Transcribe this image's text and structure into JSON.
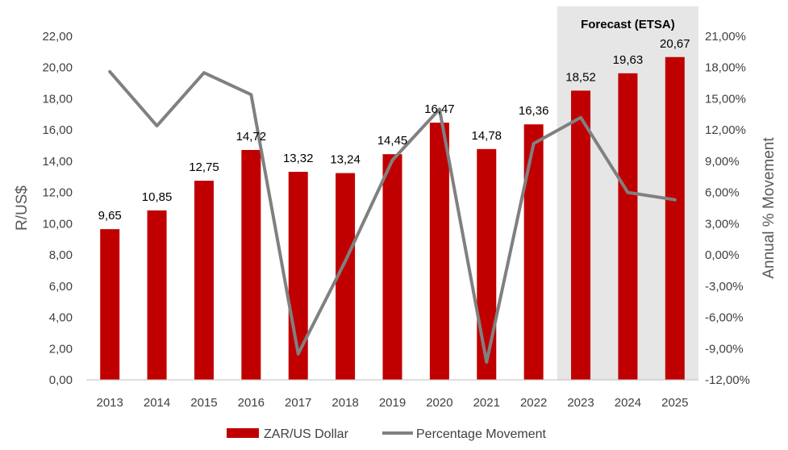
{
  "chart_data": {
    "type": "bar",
    "categories": [
      "2013",
      "2014",
      "2015",
      "2016",
      "2017",
      "2018",
      "2019",
      "2020",
      "2021",
      "2022",
      "2023",
      "2024",
      "2025"
    ],
    "series": [
      {
        "name": "ZAR/US Dollar",
        "type": "bar",
        "axis": "left",
        "color": "#C00000",
        "values": [
          9.65,
          10.85,
          12.75,
          14.72,
          13.32,
          13.24,
          14.45,
          16.47,
          14.78,
          16.36,
          18.52,
          19.63,
          20.67
        ],
        "labels": [
          "9,65",
          "10,85",
          "12,75",
          "14,72",
          "13,32",
          "13,24",
          "14,45",
          "16,47",
          "14,78",
          "16,36",
          "18,52",
          "19,63",
          "20,67"
        ]
      },
      {
        "name": "Percentage Movement",
        "type": "line",
        "axis": "right",
        "color": "#808080",
        "values": [
          17.6,
          12.4,
          17.5,
          15.4,
          -9.5,
          -0.6,
          9.1,
          14.0,
          -10.3,
          10.7,
          13.2,
          6.0,
          5.3
        ]
      }
    ],
    "ylabel": "R/US$",
    "y2label": "Annual % Movement",
    "ylim": [
      0,
      22
    ],
    "y2lim": [
      -12,
      21
    ],
    "yticks": [
      "0,00",
      "2,00",
      "4,00",
      "6,00",
      "8,00",
      "10,00",
      "12,00",
      "14,00",
      "16,00",
      "18,00",
      "20,00",
      "22,00"
    ],
    "y2ticks": [
      "-12,00%",
      "-9,00%",
      "-6,00%",
      "-3,00%",
      "0,00%",
      "3,00%",
      "6,00%",
      "9,00%",
      "12,00%",
      "15,00%",
      "18,00%",
      "21,00%"
    ],
    "forecast": {
      "label": "Forecast (ETSA)",
      "categories": [
        "2023",
        "2024",
        "2025"
      ],
      "shade_color": "#E6E6E6"
    },
    "legend_position": "bottom",
    "grid": false
  }
}
